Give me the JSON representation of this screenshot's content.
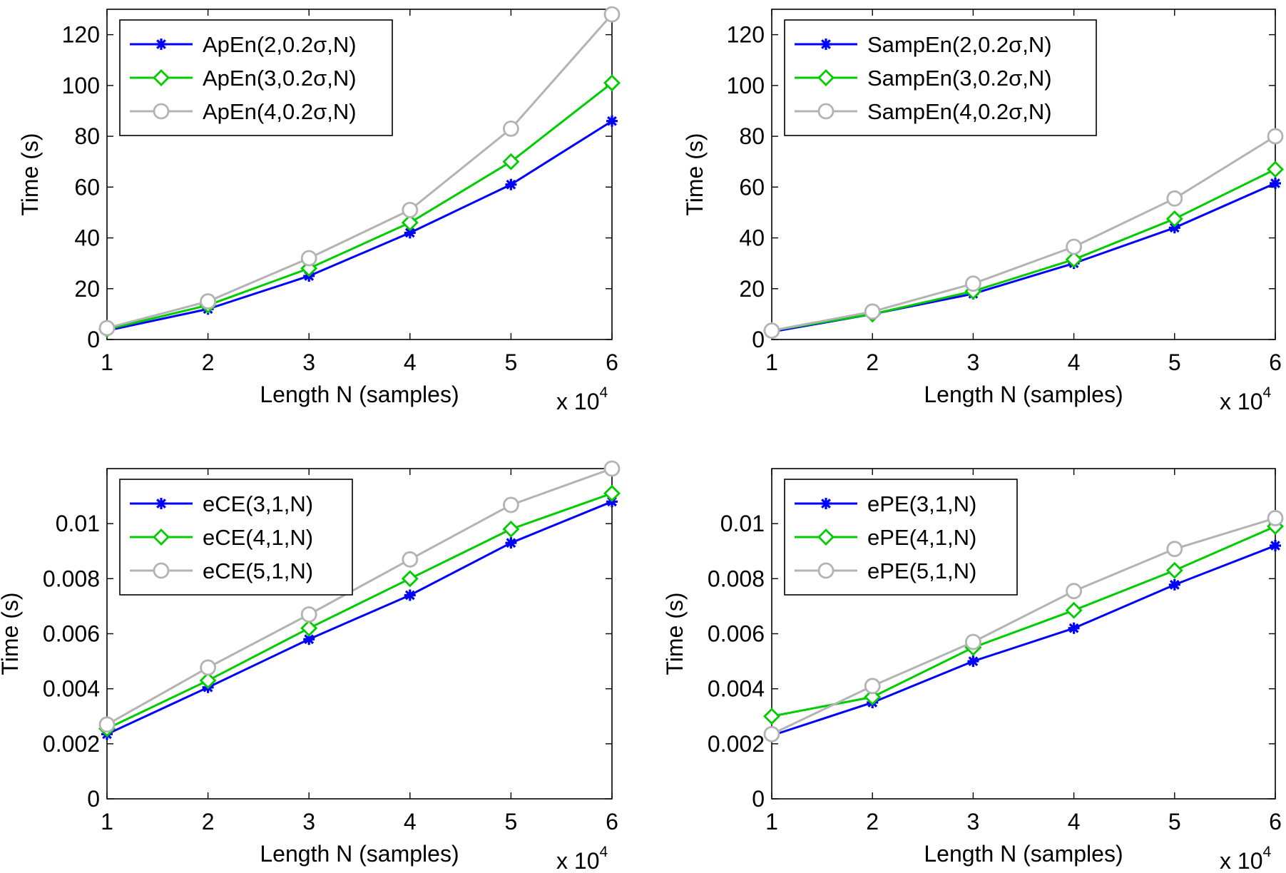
{
  "chart_data": [
    {
      "type": "line",
      "xlabel": "Length N (samples)",
      "ylabel": "Time (s)",
      "x_multiplier_label": "x 10",
      "x_multiplier_exp": "4",
      "x": [
        1,
        2,
        3,
        4,
        5,
        6
      ],
      "xticks": [
        1,
        2,
        3,
        4,
        5,
        6
      ],
      "xtick_labels": [
        "1",
        "2",
        "3",
        "4",
        "5",
        "6"
      ],
      "xlim": [
        1,
        6
      ],
      "ylim": [
        0,
        130
      ],
      "yticks": [
        0,
        20,
        40,
        60,
        80,
        100,
        120
      ],
      "ytick_labels": [
        "0",
        "20",
        "40",
        "60",
        "80",
        "100",
        "120"
      ],
      "legend_position": "top-left",
      "series": [
        {
          "name": "ApEn(2,0.2σ,N)",
          "color": "#0000ff",
          "marker": "star",
          "values": [
            3.5,
            12,
            25,
            42,
            61,
            86
          ]
        },
        {
          "name": "ApEn(3,0.2σ,N)",
          "color": "#00cc00",
          "marker": "diamond",
          "values": [
            4,
            13.5,
            28,
            46,
            70,
            101
          ]
        },
        {
          "name": "ApEn(4,0.2σ,N)",
          "color": "#b3b3b3",
          "marker": "circle",
          "values": [
            4.5,
            15,
            32,
            51,
            83,
            128
          ]
        }
      ]
    },
    {
      "type": "line",
      "xlabel": "Length N (samples)",
      "ylabel": "Time (s)",
      "x_multiplier_label": "x 10",
      "x_multiplier_exp": "4",
      "x": [
        1,
        2,
        3,
        4,
        5,
        6
      ],
      "xticks": [
        1,
        2,
        3,
        4,
        5,
        6
      ],
      "xtick_labels": [
        "1",
        "2",
        "3",
        "4",
        "5",
        "6"
      ],
      "xlim": [
        1,
        6
      ],
      "ylim": [
        0,
        130
      ],
      "yticks": [
        0,
        20,
        40,
        60,
        80,
        100,
        120
      ],
      "ytick_labels": [
        "0",
        "20",
        "40",
        "60",
        "80",
        "100",
        "120"
      ],
      "legend_position": "top-left",
      "series": [
        {
          "name": "SampEn(2,0.2σ,N)",
          "color": "#0000ff",
          "marker": "star",
          "values": [
            3,
            10,
            18,
            30,
            44,
            61.5
          ]
        },
        {
          "name": "SampEn(3,0.2σ,N)",
          "color": "#00cc00",
          "marker": "diamond",
          "values": [
            3.5,
            10,
            19,
            31.5,
            47.5,
            67
          ]
        },
        {
          "name": "SampEn(4,0.2σ,N)",
          "color": "#b3b3b3",
          "marker": "circle",
          "values": [
            3.5,
            11,
            22,
            36.5,
            55.5,
            80
          ]
        }
      ]
    },
    {
      "type": "line",
      "xlabel": "Length N (samples)",
      "ylabel": "Time (s)",
      "x_multiplier_label": "x 10",
      "x_multiplier_exp": "4",
      "x": [
        1,
        2,
        3,
        4,
        5,
        6
      ],
      "xticks": [
        1,
        2,
        3,
        4,
        5,
        6
      ],
      "xtick_labels": [
        "1",
        "2",
        "3",
        "4",
        "5",
        "6"
      ],
      "xlim": [
        1,
        6
      ],
      "ylim": [
        0,
        0.012
      ],
      "yticks": [
        0,
        0.002,
        0.004,
        0.006,
        0.008,
        0.01
      ],
      "ytick_labels": [
        "0",
        "0.002",
        "0.004",
        "0.006",
        "0.008",
        "0.01"
      ],
      "legend_position": "top-left",
      "series": [
        {
          "name": "eCE(3,1,N)",
          "color": "#0000ff",
          "marker": "star",
          "values": [
            0.00235,
            0.00405,
            0.0058,
            0.0074,
            0.0093,
            0.0108
          ]
        },
        {
          "name": "eCE(4,1,N)",
          "color": "#00cc00",
          "marker": "diamond",
          "values": [
            0.00255,
            0.0043,
            0.0062,
            0.008,
            0.0098,
            0.0111
          ]
        },
        {
          "name": "eCE(5,1,N)",
          "color": "#b3b3b3",
          "marker": "circle",
          "values": [
            0.0027,
            0.00477,
            0.0067,
            0.0087,
            0.01068,
            0.012
          ]
        }
      ]
    },
    {
      "type": "line",
      "xlabel": "Length N (samples)",
      "ylabel": "Time (s)",
      "x_multiplier_label": "x 10",
      "x_multiplier_exp": "4",
      "x": [
        1,
        2,
        3,
        4,
        5,
        6
      ],
      "xticks": [
        1,
        2,
        3,
        4,
        5,
        6
      ],
      "xtick_labels": [
        "1",
        "2",
        "3",
        "4",
        "5",
        "6"
      ],
      "xlim": [
        1,
        6
      ],
      "ylim": [
        0,
        0.012
      ],
      "yticks": [
        0,
        0.002,
        0.004,
        0.006,
        0.008,
        0.01
      ],
      "ytick_labels": [
        "0",
        "0.002",
        "0.004",
        "0.006",
        "0.008",
        "0.01"
      ],
      "legend_position": "top-left",
      "series": [
        {
          "name": "ePE(3,1,N)",
          "color": "#0000ff",
          "marker": "star",
          "values": [
            0.0023,
            0.0035,
            0.005,
            0.0062,
            0.00778,
            0.0092
          ]
        },
        {
          "name": "ePE(4,1,N)",
          "color": "#00cc00",
          "marker": "diamond",
          "values": [
            0.003,
            0.0037,
            0.0055,
            0.00685,
            0.0083,
            0.0099
          ]
        },
        {
          "name": "ePE(5,1,N)",
          "color": "#b3b3b3",
          "marker": "circle",
          "values": [
            0.00235,
            0.0041,
            0.0057,
            0.00755,
            0.00908,
            0.0102
          ]
        }
      ]
    }
  ]
}
